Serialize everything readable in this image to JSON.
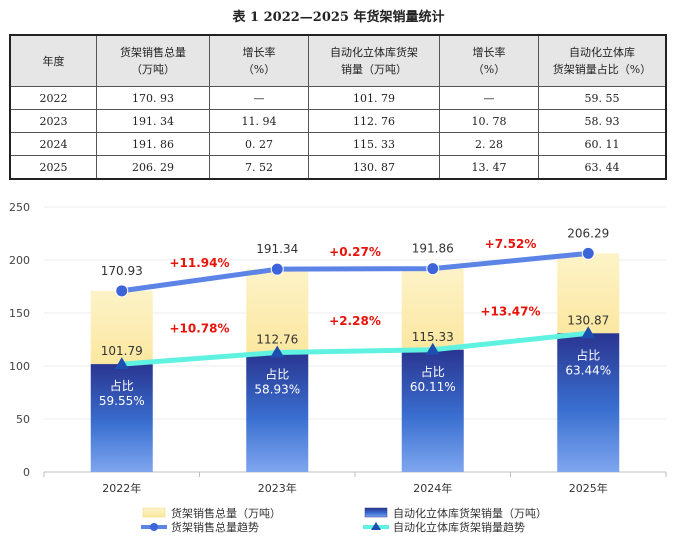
{
  "table": {
    "caption": "表 1   2022—2025 年货架销量统计",
    "headers": [
      {
        "line1": "年度",
        "line2": ""
      },
      {
        "line1": "货架销售总量",
        "line2": "（万吨）"
      },
      {
        "line1": "增长率",
        "line2": "（%）"
      },
      {
        "line1": "自动化立体库货架",
        "line2": "销量（万吨）"
      },
      {
        "line1": "增长率",
        "line2": "（%）"
      },
      {
        "line1": "自动化立体库",
        "line2": "货架销量占比（%）"
      }
    ],
    "rows": [
      [
        "2022",
        "170. 93",
        "—",
        "101. 79",
        "—",
        "59. 55"
      ],
      [
        "2023",
        "191. 34",
        "11. 94",
        "112. 76",
        "10. 78",
        "58. 93"
      ],
      [
        "2024",
        "191. 86",
        "0. 27",
        "115. 33",
        "2. 28",
        "60. 11"
      ],
      [
        "2025",
        "206. 29",
        "7. 52",
        "130. 87",
        "13. 47",
        "63. 44"
      ]
    ]
  },
  "chart_data": {
    "type": "bar",
    "categories": [
      "2022年",
      "2023年",
      "2024年",
      "2025年"
    ],
    "ylim": [
      0,
      250
    ],
    "yticks": [
      0,
      50,
      100,
      150,
      200,
      250
    ],
    "series": [
      {
        "name": "货架销售总量（万吨）",
        "kind": "bar",
        "color": "#fbe9a6",
        "values": [
          170.93,
          191.34,
          191.86,
          206.29
        ],
        "labels": [
          "170.93",
          "191.34",
          "191.86",
          "206.29"
        ]
      },
      {
        "name": "自动化立体库货架销量（万吨）",
        "kind": "bar",
        "color": "#2c3f9c",
        "values": [
          101.79,
          112.76,
          115.33,
          130.87
        ],
        "labels": [
          "101.79",
          "112.76",
          "115.33",
          "130.87"
        ]
      },
      {
        "name": "货架销售总量趋势",
        "kind": "line",
        "color": "#5b84e6",
        "values": [
          170.93,
          191.34,
          191.86,
          206.29
        ]
      },
      {
        "name": "自动化立体库货架销量趋势",
        "kind": "line",
        "color": "#5ff2e0",
        "values": [
          101.79,
          112.76,
          115.33,
          130.87
        ]
      }
    ],
    "share_label": "占比",
    "share_values": [
      "59.55%",
      "58.93%",
      "60.11%",
      "63.44%"
    ],
    "total_growth": [
      "+11.94%",
      "+0.27%",
      "+7.52%"
    ],
    "auto_growth": [
      "+10.78%",
      "+2.28%",
      "+13.47%"
    ],
    "growth_color": "#e8140c",
    "grid": true,
    "legend_position": "bottom"
  }
}
